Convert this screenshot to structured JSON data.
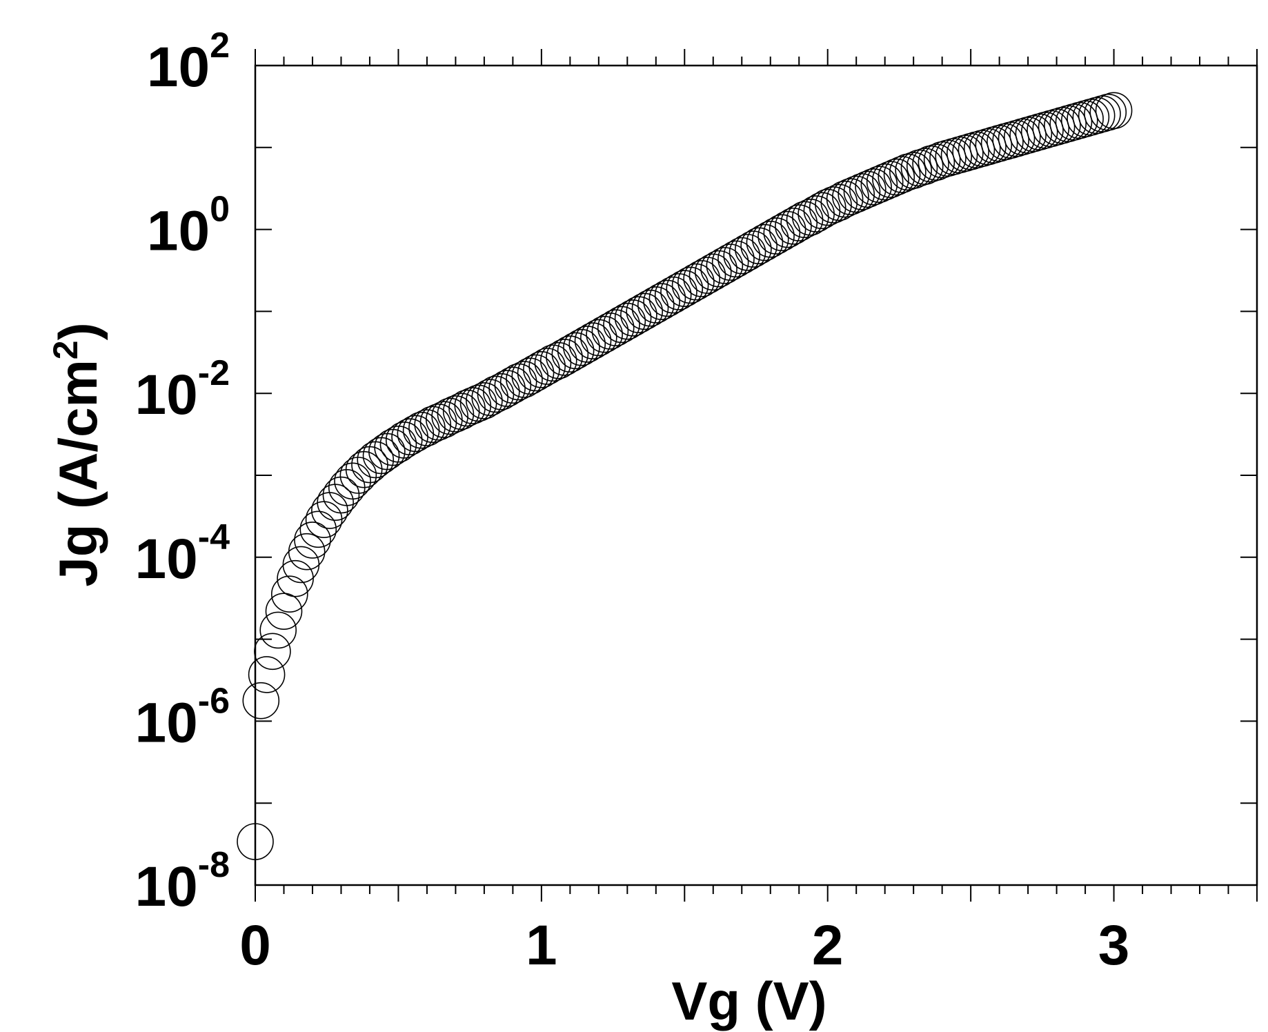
{
  "chart_data": {
    "type": "scatter",
    "title": "",
    "xlabel": "Vg (V)",
    "ylabel_parts": {
      "main": "Jg (A/cm",
      "sup": "2",
      "close": ")"
    },
    "x_scale": "linear",
    "y_scale": "log",
    "xlim": [
      0,
      3.5
    ],
    "ylim": [
      1e-08,
      100
    ],
    "x_ticks": [
      {
        "value": 0,
        "label": "0"
      },
      {
        "value": 1,
        "label": "1"
      },
      {
        "value": 2,
        "label": "2"
      },
      {
        "value": 3,
        "label": "3"
      }
    ],
    "y_ticks": [
      {
        "value": 1e-08,
        "base": "10",
        "exp": "-8"
      },
      {
        "value": 1e-06,
        "base": "10",
        "exp": "-6"
      },
      {
        "value": 0.0001,
        "base": "10",
        "exp": "-4"
      },
      {
        "value": 0.01,
        "base": "10",
        "exp": "-2"
      },
      {
        "value": 1,
        "base": "10",
        "exp": "0"
      },
      {
        "value": 100,
        "base": "10",
        "exp": "2"
      }
    ],
    "grid": false,
    "marker": "open-circle",
    "marker_color": "#000000",
    "series": [
      {
        "x": [
          0.0,
          0.02,
          0.04,
          0.06,
          0.08,
          0.1,
          0.12,
          0.14,
          0.16,
          0.18,
          0.2,
          0.22,
          0.24,
          0.26,
          0.28,
          0.3,
          0.32,
          0.34,
          0.36,
          0.38,
          0.4,
          0.42,
          0.44,
          0.46,
          0.48,
          0.5,
          0.52,
          0.54,
          0.56,
          0.58,
          0.6,
          0.62,
          0.64,
          0.66,
          0.68,
          0.7,
          0.72,
          0.74,
          0.76,
          0.78,
          0.8,
          0.82,
          0.84,
          0.86,
          0.88,
          0.9,
          0.92,
          0.94,
          0.96,
          0.98,
          1.0,
          1.02,
          1.04,
          1.06,
          1.08,
          1.1,
          1.12,
          1.14,
          1.16,
          1.18,
          1.2,
          1.22,
          1.24,
          1.26,
          1.28,
          1.3,
          1.32,
          1.34,
          1.36,
          1.38,
          1.4,
          1.42,
          1.44,
          1.46,
          1.48,
          1.5,
          1.52,
          1.54,
          1.56,
          1.58,
          1.6,
          1.62,
          1.64,
          1.66,
          1.68,
          1.7,
          1.72,
          1.74,
          1.76,
          1.78,
          1.8,
          1.82,
          1.84,
          1.86,
          1.88,
          1.9,
          1.92,
          1.94,
          1.96,
          1.98,
          2.0,
          2.02,
          2.04,
          2.06,
          2.08,
          2.1,
          2.12,
          2.14,
          2.16,
          2.18,
          2.2,
          2.22,
          2.24,
          2.26,
          2.28,
          2.3,
          2.32,
          2.34,
          2.36,
          2.38,
          2.4,
          2.42,
          2.44,
          2.46,
          2.48,
          2.5,
          2.52,
          2.54,
          2.56,
          2.58,
          2.6,
          2.62,
          2.64,
          2.66,
          2.68,
          2.7,
          2.72,
          2.74,
          2.76,
          2.78,
          2.8,
          2.82,
          2.84,
          2.86,
          2.88,
          2.9,
          2.92,
          2.94,
          2.96,
          2.98,
          3.0
        ],
        "y": [
          3.39e-08,
          1.78e-06,
          3.7e-06,
          7.1e-06,
          1.29e-05,
          2.19e-05,
          3.55e-05,
          5.5e-05,
          8.13e-05,
          0.000117,
          0.000162,
          0.000219,
          0.000288,
          0.000372,
          0.000468,
          0.000575,
          0.000708,
          0.000851,
          0.001,
          0.001175,
          0.001349,
          0.001549,
          0.00174,
          0.00195,
          0.002188,
          0.002399,
          0.002692,
          0.002951,
          0.003236,
          0.003548,
          0.003802,
          0.004169,
          0.004467,
          0.004786,
          0.005248,
          0.005623,
          0.006026,
          0.006607,
          0.007079,
          0.007586,
          0.008128,
          0.008913,
          0.009772,
          0.01047,
          0.01148,
          0.01259,
          0.0138,
          0.01479,
          0.01622,
          0.01778,
          0.01949,
          0.02138,
          0.02344,
          0.02512,
          0.02754,
          0.0302,
          0.03311,
          0.03631,
          0.03981,
          0.04365,
          0.04786,
          0.05248,
          0.05754,
          0.0631,
          0.06918,
          0.07586,
          0.08318,
          0.0912,
          0.1,
          0.1096,
          0.1202,
          0.1318,
          0.1445,
          0.1585,
          0.1738,
          0.1905,
          0.2089,
          0.2291,
          0.2512,
          0.2754,
          0.302,
          0.3311,
          0.3631,
          0.3981,
          0.4365,
          0.4786,
          0.5248,
          0.5754,
          0.631,
          0.6918,
          0.7586,
          0.8318,
          0.912,
          1.0,
          1.096,
          1.202,
          1.318,
          1.413,
          1.549,
          1.698,
          1.862,
          1.995,
          2.138,
          2.344,
          2.512,
          2.692,
          2.884,
          3.09,
          3.311,
          3.548,
          3.802,
          4.074,
          4.365,
          4.677,
          5.012,
          5.248,
          5.623,
          5.888,
          6.31,
          6.607,
          7.079,
          7.413,
          7.762,
          8.128,
          8.511,
          8.913,
          9.333,
          9.772,
          10.23,
          10.72,
          11.22,
          11.75,
          12.3,
          12.88,
          13.49,
          14.13,
          14.79,
          15.49,
          16.22,
          16.98,
          17.78,
          18.62,
          19.5,
          20.42,
          21.38,
          22.39,
          23.44,
          24.55,
          25.7,
          26.92,
          28.18
        ]
      }
    ]
  }
}
